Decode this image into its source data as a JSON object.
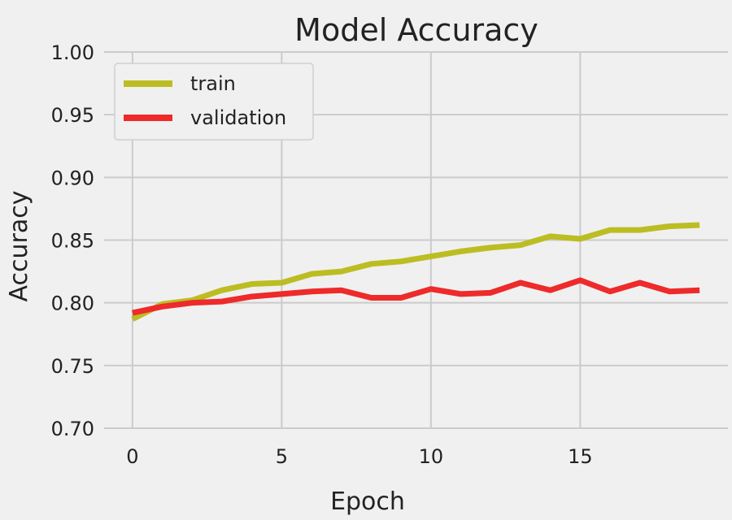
{
  "chart_data": {
    "type": "line",
    "title": "Model Accuracy",
    "xlabel": "Epoch",
    "ylabel": "Accuracy",
    "xlim": [
      -0.95,
      19.95
    ],
    "ylim": [
      0.7,
      1.0
    ],
    "xticks": [
      0,
      5,
      10,
      15
    ],
    "yticks": [
      0.7,
      0.75,
      0.8,
      0.85,
      0.9,
      0.95,
      1.0
    ],
    "xtick_labels": [
      "0",
      "5",
      "10",
      "15"
    ],
    "ytick_labels": [
      "0.70",
      "0.75",
      "0.80",
      "0.85",
      "0.90",
      "0.95",
      "1.00"
    ],
    "grid": true,
    "legend_position": "top-left",
    "x": [
      0,
      1,
      2,
      3,
      4,
      5,
      6,
      7,
      8,
      9,
      10,
      11,
      12,
      13,
      14,
      15,
      16,
      17,
      18,
      19
    ],
    "series": [
      {
        "name": "train",
        "color": "#bcbd22",
        "values": [
          0.787,
          0.799,
          0.802,
          0.81,
          0.815,
          0.816,
          0.823,
          0.825,
          0.831,
          0.833,
          0.837,
          0.841,
          0.844,
          0.846,
          0.853,
          0.851,
          0.858,
          0.858,
          0.861,
          0.862
        ]
      },
      {
        "name": "validation",
        "color": "#ee2a2a",
        "values": [
          0.792,
          0.797,
          0.8,
          0.801,
          0.805,
          0.807,
          0.809,
          0.81,
          0.804,
          0.804,
          0.811,
          0.807,
          0.808,
          0.816,
          0.81,
          0.818,
          0.809,
          0.816,
          0.809,
          0.81
        ]
      }
    ]
  },
  "colors": {
    "figure_background": "#f0f0f0",
    "grid": "#cbcbcb"
  }
}
